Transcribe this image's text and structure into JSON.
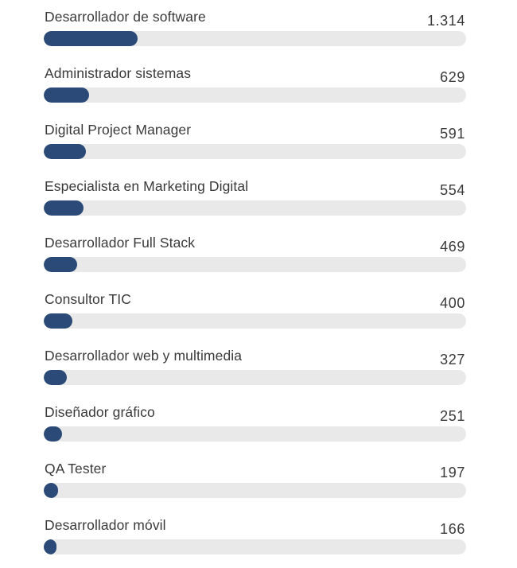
{
  "colors": {
    "bar_fill": "#2b4a78",
    "bar_track": "#e9e9e9",
    "text": "#3a3a3a"
  },
  "chart_data": {
    "type": "bar",
    "orientation": "horizontal",
    "categories": [
      "Desarrollador de software",
      "Administrador sistemas",
      "Digital Project Manager",
      "Especialista en Marketing Digital",
      "Desarrollador Full Stack",
      "Consultor TIC",
      "Desarrollador web y multimedia",
      "Diseñador gráfico",
      "QA Tester",
      "Desarrollador móvil"
    ],
    "values": [
      1314,
      629,
      591,
      554,
      469,
      400,
      327,
      251,
      197,
      166
    ],
    "value_labels": [
      "1.314",
      "629",
      "591",
      "554",
      "469",
      "400",
      "327",
      "251",
      "197",
      "166"
    ],
    "xlim": [
      0,
      5900
    ]
  }
}
